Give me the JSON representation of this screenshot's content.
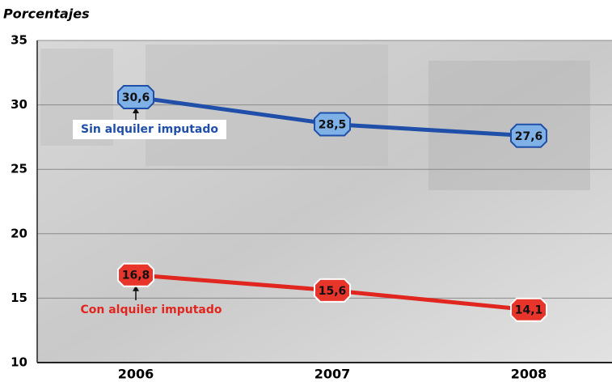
{
  "chart_data": {
    "type": "line",
    "title": "Porcentajes",
    "categories": [
      "2006",
      "2007",
      "2008"
    ],
    "series": [
      {
        "name": "Sin alquiler imputado",
        "color": "#1f4fa8",
        "values": [
          30.6,
          28.5,
          27.6
        ],
        "value_labels": [
          "30,6",
          "28,5",
          "27,6"
        ]
      },
      {
        "name": "Con alquiler imputado",
        "color": "#e0261f",
        "values": [
          16.8,
          15.6,
          14.1
        ],
        "value_labels": [
          "16,8",
          "15,6",
          "14,1"
        ]
      }
    ],
    "ylim": [
      10,
      35
    ],
    "yticks": [
      10,
      15,
      20,
      25,
      30,
      35
    ],
    "grid": true
  }
}
